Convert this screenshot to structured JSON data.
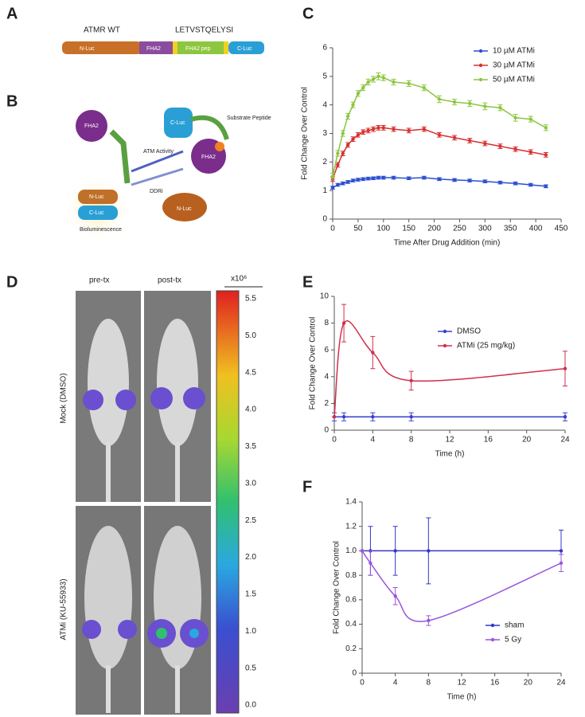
{
  "panel_a": {
    "letter": "A",
    "label_wt": "ATMR WT",
    "label_seq": "LETVSTQELYSI",
    "segments": [
      "N-Luc",
      "FHA2",
      "FHA2 pep",
      "C-Luc"
    ]
  },
  "panel_b": {
    "letter": "B",
    "left_fha2": "FHA2",
    "n_luc_left": "N-Luc",
    "c_luc_left": "C-Luc",
    "bioluminescence": "Bioluminescence",
    "arrow_top": "ATM Activity",
    "arrow_bottom": "DDRi",
    "substrate": "Substrate Peptide",
    "right_c_luc": "C-Luc",
    "right_fha2": "FHA2",
    "right_n_luc": "N-Luc"
  },
  "panel_d": {
    "letter": "D",
    "columns": [
      "pre-tx",
      "post-tx"
    ],
    "rows": [
      "Mock (DMSO)",
      "ATMi (KU-55933)"
    ],
    "colorbar_unit": "x10⁶",
    "colorbar_ticks": [
      "5.5",
      "5.0",
      "4.5",
      "4.0",
      "3.5",
      "3.0",
      "2.5",
      "2.0",
      "1.5",
      "1.0",
      "0.5",
      "0.0"
    ]
  },
  "chart_data": [
    {
      "type": "line",
      "letter": "C",
      "xlabel": "Time After Drug Addition (min)",
      "ylabel": "Fold Change Over Control",
      "x": [
        0,
        10,
        20,
        30,
        40,
        50,
        60,
        70,
        80,
        90,
        100,
        120,
        150,
        180,
        210,
        240,
        270,
        300,
        330,
        360,
        390,
        420
      ],
      "series": [
        {
          "name": "10 µM ATMi",
          "color": "#2b4fd0",
          "values": [
            1.1,
            1.2,
            1.25,
            1.3,
            1.35,
            1.38,
            1.4,
            1.42,
            1.43,
            1.45,
            1.45,
            1.45,
            1.43,
            1.45,
            1.4,
            1.37,
            1.35,
            1.32,
            1.28,
            1.25,
            1.2,
            1.15
          ],
          "errors": [
            0.05,
            0.05,
            0.05,
            0.05,
            0.05,
            0.05,
            0.05,
            0.05,
            0.05,
            0.05,
            0.05,
            0.05,
            0.05,
            0.05,
            0.05,
            0.05,
            0.05,
            0.05,
            0.05,
            0.05,
            0.05,
            0.05
          ]
        },
        {
          "name": "30 µM ATMi",
          "color": "#d83030",
          "values": [
            1.4,
            1.9,
            2.3,
            2.6,
            2.8,
            2.95,
            3.05,
            3.1,
            3.15,
            3.2,
            3.2,
            3.15,
            3.1,
            3.15,
            2.95,
            2.85,
            2.75,
            2.65,
            2.55,
            2.45,
            2.35,
            2.25
          ],
          "errors": [
            0.08,
            0.08,
            0.08,
            0.08,
            0.08,
            0.08,
            0.08,
            0.08,
            0.08,
            0.08,
            0.08,
            0.08,
            0.08,
            0.08,
            0.08,
            0.08,
            0.08,
            0.08,
            0.08,
            0.08,
            0.08,
            0.08
          ]
        },
        {
          "name": "50 µM ATMi",
          "color": "#8cc63f",
          "values": [
            1.5,
            2.3,
            3.0,
            3.6,
            4.0,
            4.4,
            4.6,
            4.8,
            4.9,
            5.0,
            4.95,
            4.8,
            4.75,
            4.6,
            4.2,
            4.1,
            4.05,
            3.95,
            3.9,
            3.55,
            3.5,
            3.2
          ],
          "errors": [
            0.1,
            0.1,
            0.1,
            0.1,
            0.1,
            0.1,
            0.1,
            0.1,
            0.1,
            0.12,
            0.1,
            0.1,
            0.1,
            0.1,
            0.12,
            0.1,
            0.1,
            0.12,
            0.1,
            0.12,
            0.1,
            0.1
          ]
        }
      ],
      "xlim": [
        0,
        450
      ],
      "xticks": [
        0,
        50,
        100,
        150,
        200,
        250,
        300,
        350,
        400,
        450
      ],
      "ylim": [
        0,
        6
      ],
      "yticks": [
        0,
        1,
        2,
        3,
        4,
        5,
        6
      ],
      "legend": "upper right",
      "smooth": false
    },
    {
      "type": "line",
      "letter": "E",
      "xlabel": "Time (h)",
      "ylabel": "Fold Change Over Control",
      "x": [
        0,
        1,
        4,
        8,
        24
      ],
      "series": [
        {
          "name": "DMSO",
          "color": "#3540d0",
          "values": [
            1,
            1,
            1,
            1,
            1
          ],
          "errors": [
            0.3,
            0.3,
            0.3,
            0.3,
            0.3
          ]
        },
        {
          "name": "ATMi (25 mg/kg)",
          "color": "#d0304a",
          "values": [
            1,
            8,
            5.8,
            3.7,
            4.6
          ],
          "errors": [
            0,
            1.4,
            1.2,
            0.7,
            1.3
          ]
        }
      ],
      "xlim": [
        0,
        24
      ],
      "xticks": [
        0,
        4,
        8,
        12,
        16,
        20,
        24
      ],
      "ylim": [
        0,
        10
      ],
      "yticks": [
        0,
        2,
        4,
        6,
        8,
        10
      ],
      "legend": "center right",
      "smooth": true
    },
    {
      "type": "line",
      "letter": "F",
      "xlabel": "Time (h)",
      "ylabel": "Fold Change Over Control",
      "x": [
        0,
        1,
        4,
        8,
        24
      ],
      "series": [
        {
          "name": "sham",
          "color": "#3535c8",
          "values": [
            1,
            1,
            1,
            1,
            1
          ],
          "errors": [
            0,
            0.2,
            0.2,
            0.27,
            0.17
          ]
        },
        {
          "name": "5 Gy",
          "color": "#9955dd",
          "values": [
            1,
            0.9,
            0.63,
            0.43,
            0.9
          ],
          "errors": [
            0,
            0.1,
            0.07,
            0.04,
            0.07
          ]
        }
      ],
      "xlim": [
        0,
        24
      ],
      "xticks": [
        0,
        4,
        8,
        12,
        16,
        20,
        24
      ],
      "ylim": [
        0,
        1.4
      ],
      "yticks": [
        0,
        0.2,
        0.4,
        0.6,
        0.8,
        {
          "value": 1,
          "label": "1.0"
        },
        1.2,
        1.4
      ],
      "legend": "lower right",
      "smooth": true
    }
  ]
}
